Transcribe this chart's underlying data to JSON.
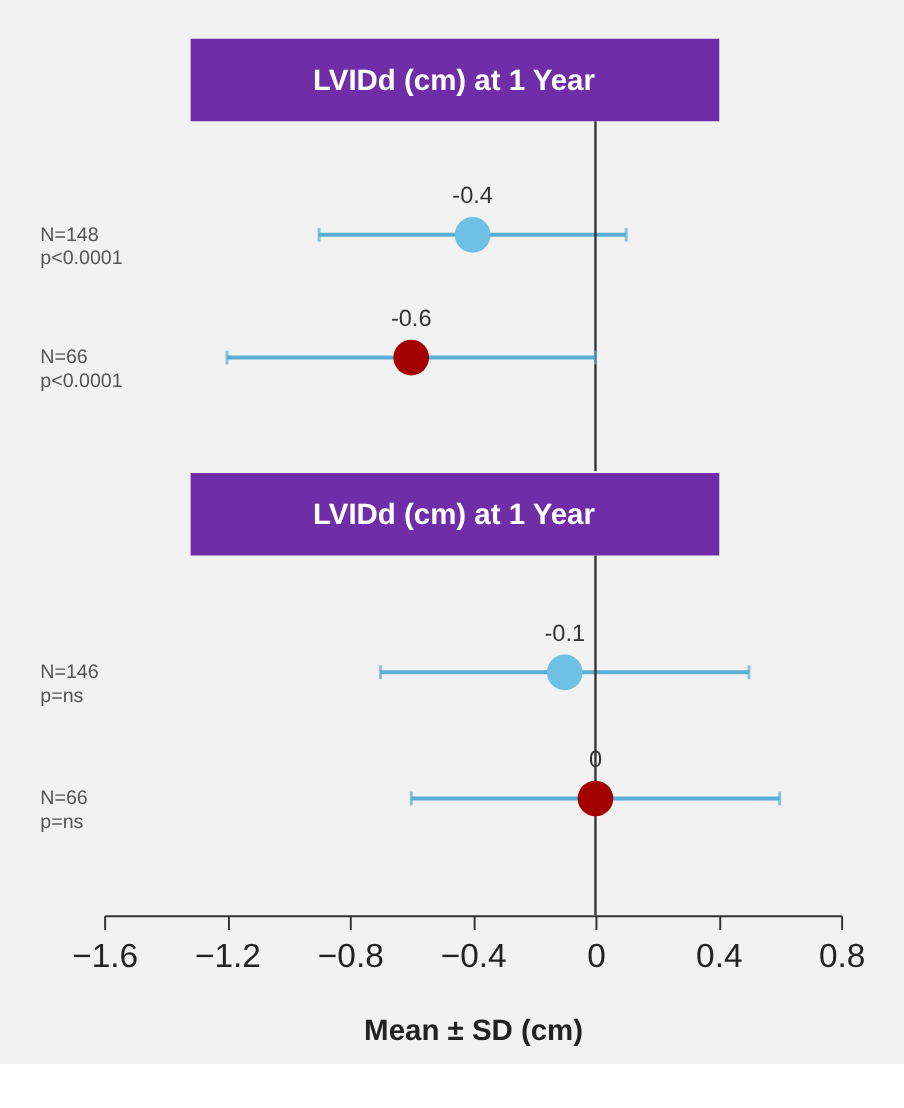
{
  "chart_data": [
    {
      "type": "scatter",
      "title": "LVIDd (cm) at 1 Year",
      "orientation": "horizontal",
      "categories": [
        "N=148\np<0.0001",
        "N=66\np<0.0001"
      ],
      "values": [
        -0.4,
        -0.6
      ],
      "errors": [
        0.5,
        0.6
      ],
      "colors": [
        "#6ec1e4",
        "#a40000"
      ],
      "xlim": [
        -1.6,
        0.8
      ],
      "tick_labels": "y",
      "ref_lines": [
        {
          "axis": "x",
          "value": 0
        }
      ],
      "data_labels": true,
      "marker": "circle"
    },
    {
      "type": "scatter",
      "title": "LVIDd (cm) at 1 Year",
      "orientation": "horizontal",
      "categories": [
        "N=146\np=ns",
        "N=66\np=ns"
      ],
      "values": [
        -0.1,
        0
      ],
      "errors": [
        0.6,
        0.6
      ],
      "colors": [
        "#6ec1e4",
        "#a40000"
      ],
      "xlim": [
        -1.6,
        0.8
      ],
      "xticks": [
        -1.6,
        -1.2,
        -0.8,
        -0.4,
        0,
        0.4,
        0.8
      ],
      "xlabel": "Mean ± SD (cm)",
      "ref_lines": [
        {
          "axis": "x",
          "value": 0
        }
      ],
      "data_labels": true,
      "marker": "circle"
    }
  ]
}
